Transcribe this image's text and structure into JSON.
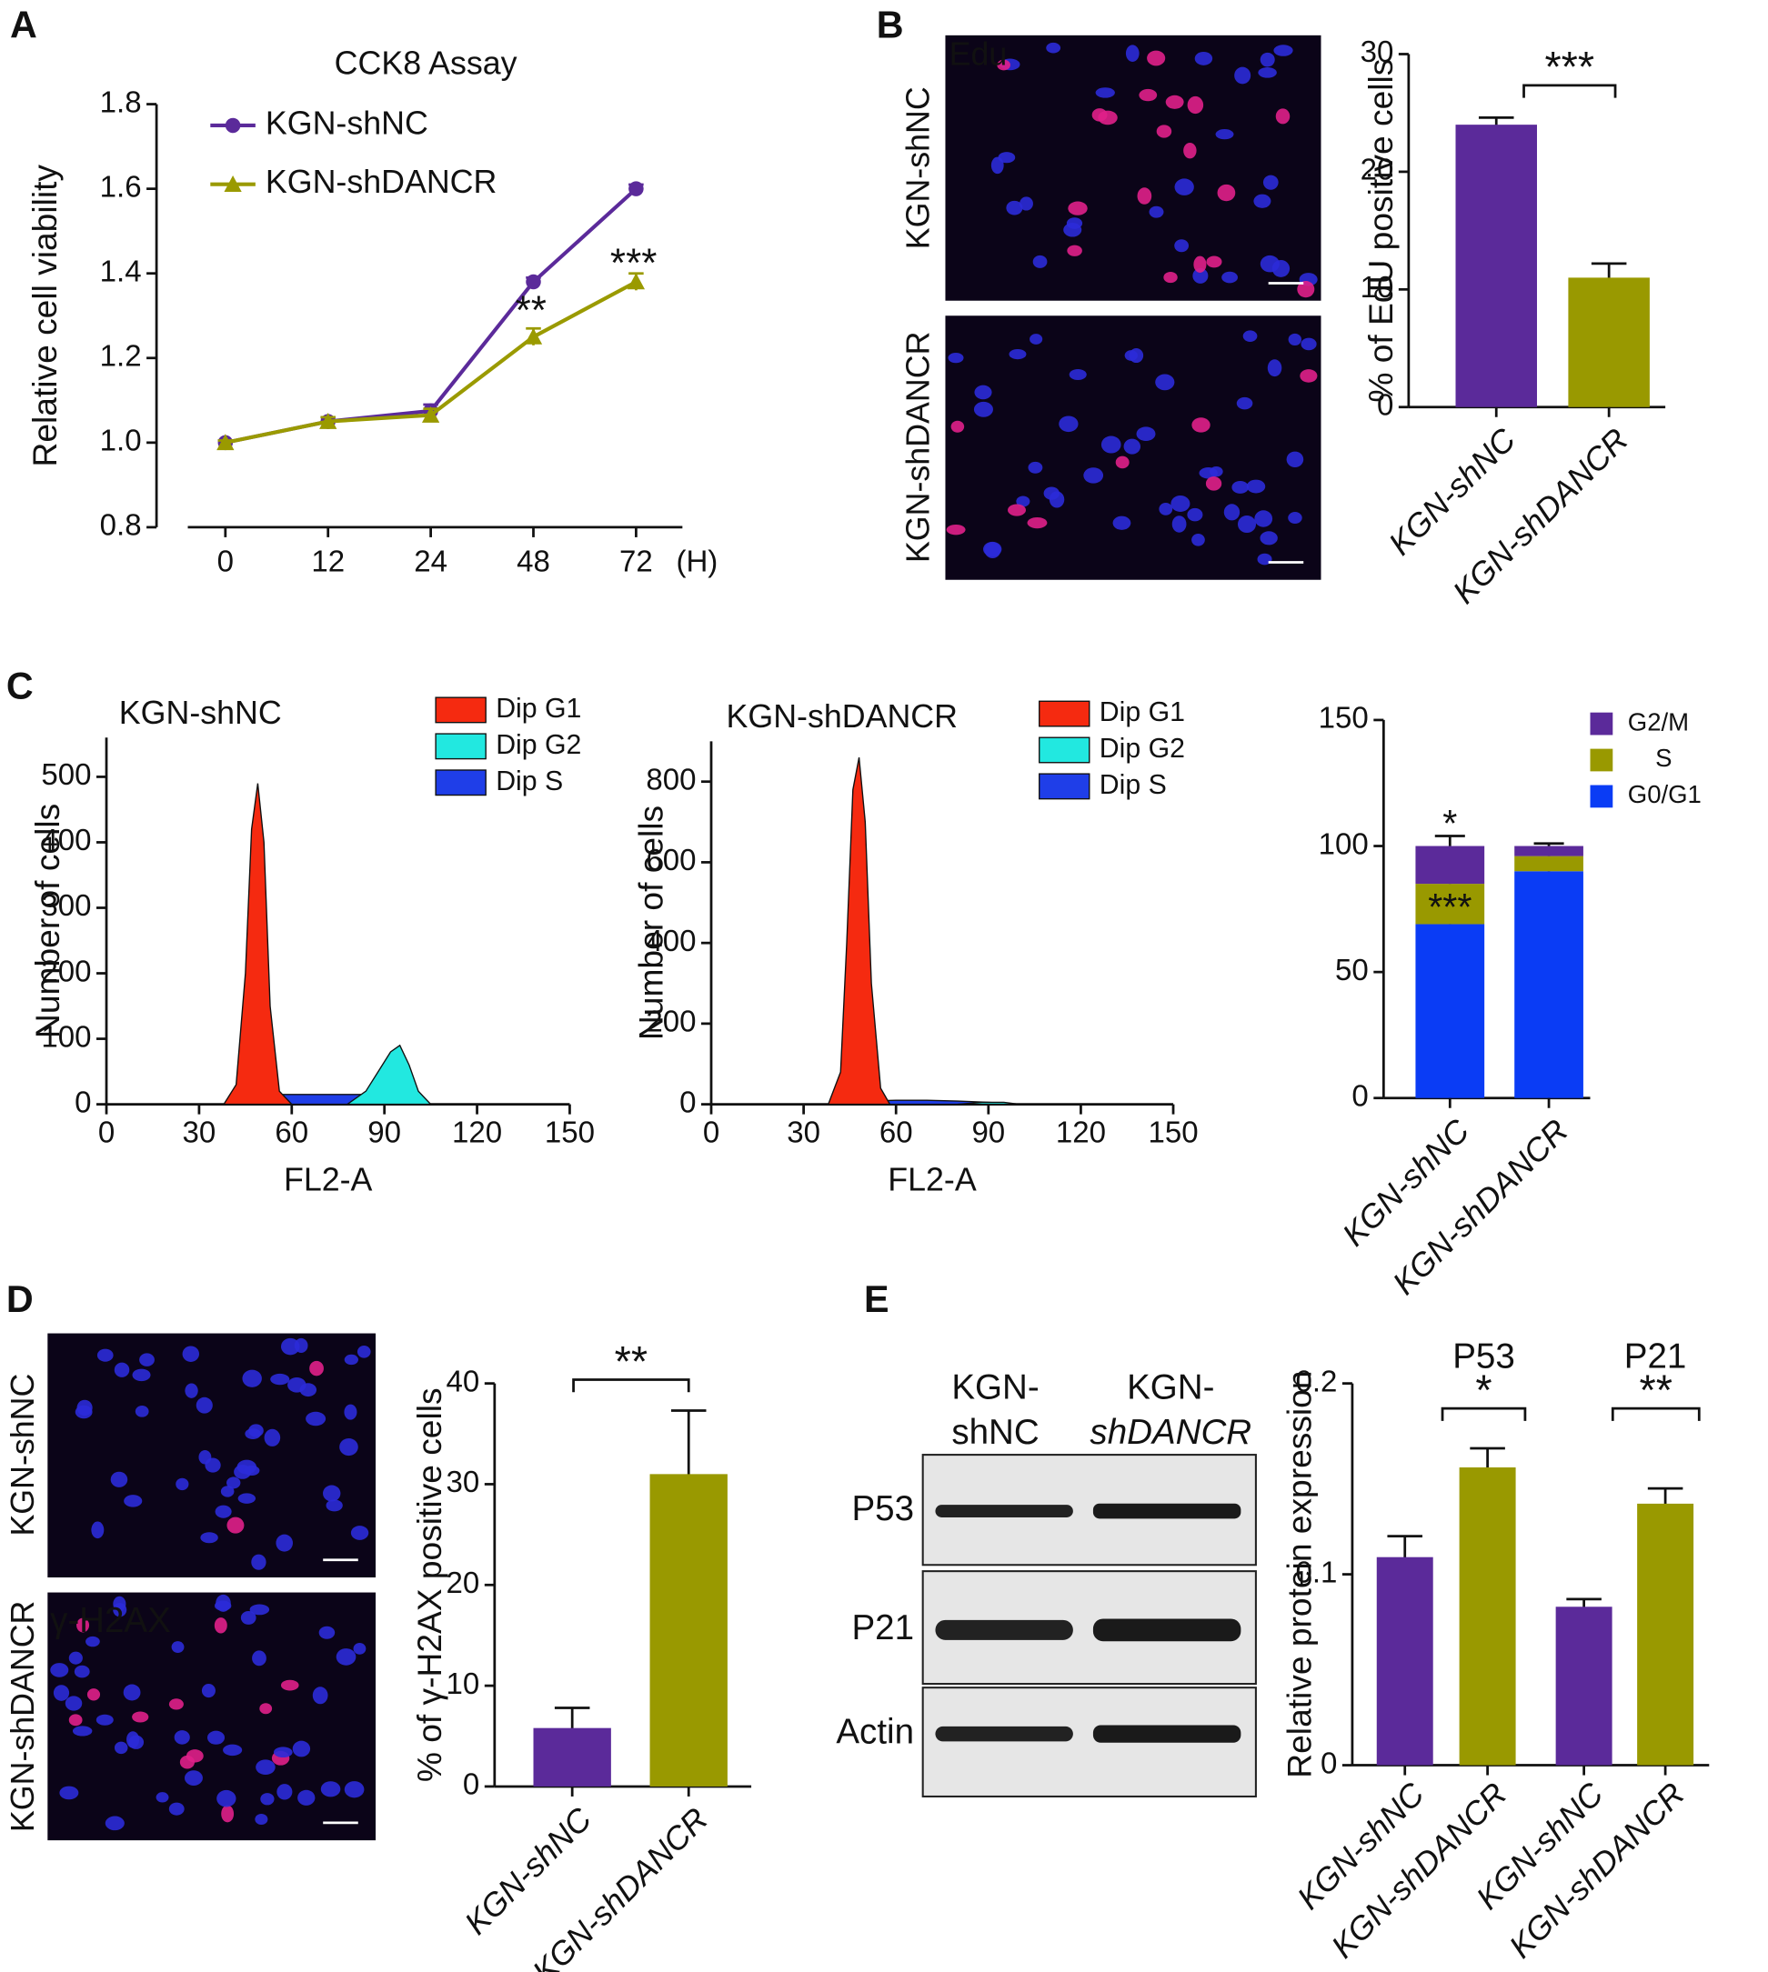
{
  "panel_labels": [
    "A",
    "B",
    "C",
    "D",
    "E"
  ],
  "edu_images": {
    "stain": "Edu",
    "rows": [
      "KGN-shNC",
      "KGN-shDANCR"
    ]
  },
  "h2ax_images": {
    "stain": "γ-H2AX",
    "rows": [
      "KGN-shNC",
      "KGN-shDANCR"
    ]
  },
  "blot": {
    "columns": [
      [
        "KGN-",
        "shNC"
      ],
      [
        "KGN-",
        "shDANCR"
      ]
    ],
    "rows": [
      "P53",
      "P21",
      "Actin"
    ]
  },
  "chart_data": [
    {
      "type": "line",
      "title": "CCK8 Assay",
      "y_label": "Relative cell viability",
      "x_unit": "(H)",
      "categories": [
        "0",
        "12",
        "24",
        "48",
        "72"
      ],
      "series": [
        {
          "name": "KGN-shNC",
          "color": "#5b2a9a",
          "marker": "circle",
          "values": [
            1.0,
            1.05,
            1.075,
            1.38,
            1.6
          ],
          "errors": [
            0.005,
            0.01,
            0.015,
            0.01,
            0.01
          ]
        },
        {
          "name": "KGN-shDANCR",
          "color": "#9a9a00",
          "marker": "triangle",
          "values": [
            1.0,
            1.05,
            1.065,
            1.25,
            1.38
          ],
          "errors": [
            0.005,
            0.01,
            0.015,
            0.02,
            0.02
          ]
        }
      ],
      "ylim": [
        0.8,
        1.8
      ],
      "yticks": [
        0.8,
        {
          "value": 1,
          "label": "1.0"
        },
        1.2,
        1.4,
        1.6,
        1.8
      ],
      "annotations": [
        "**",
        "***"
      ]
    },
    {
      "type": "bar",
      "y_label": "% of EdU positive cells",
      "categories": [
        "KGN-shNC",
        "KGN-shDANCR"
      ],
      "values": [
        24,
        11
      ],
      "errors": [
        0.6,
        1.2
      ],
      "colors": [
        "#5b2a9a",
        "#999900"
      ],
      "ylim": [
        0,
        30
      ],
      "yticks": [
        0,
        10,
        20,
        30
      ],
      "annotations": [
        "***"
      ]
    },
    {
      "type": "histogram",
      "title": "KGN-shNC",
      "x_label": "FL2-A",
      "y_label": "Number of cells",
      "xlim": [
        0,
        150
      ],
      "xticks": [
        0,
        30,
        60,
        90,
        120,
        150
      ],
      "ylim": [
        0,
        560
      ],
      "yticks": [
        0,
        100,
        200,
        300,
        400,
        500
      ],
      "series": [
        {
          "name": "Dip G1",
          "color": "#f52a10",
          "x": [
            38,
            42,
            45,
            47,
            49,
            51,
            53,
            56,
            60
          ],
          "values": [
            0,
            30,
            200,
            420,
            490,
            400,
            150,
            20,
            0
          ]
        },
        {
          "name": "Dip G2",
          "color": "#22e8e0",
          "x": [
            78,
            84,
            88,
            92,
            95,
            98,
            101,
            105
          ],
          "values": [
            0,
            20,
            50,
            80,
            90,
            60,
            20,
            0
          ]
        },
        {
          "name": "Dip S",
          "color": "#1f3ee8",
          "x": [
            45,
            55,
            65,
            75,
            85,
            95,
            105
          ],
          "values": [
            5,
            15,
            15,
            15,
            15,
            10,
            0
          ]
        }
      ]
    },
    {
      "type": "histogram",
      "title": "KGN-shDANCR",
      "x_label": "FL2-A",
      "y_label": "Number of cells",
      "xlim": [
        0,
        150
      ],
      "xticks": [
        0,
        30,
        60,
        90,
        120,
        150
      ],
      "ylim": [
        0,
        900
      ],
      "yticks": [
        0,
        200,
        400,
        600,
        800
      ],
      "series": [
        {
          "name": "Dip G1",
          "color": "#f52a10",
          "x": [
            38,
            42,
            44,
            46,
            48,
            50,
            52,
            55,
            58
          ],
          "values": [
            0,
            80,
            400,
            780,
            860,
            700,
            300,
            40,
            0
          ]
        },
        {
          "name": "Dip G2",
          "color": "#22e8e0",
          "x": [
            80,
            88,
            95,
            100
          ],
          "values": [
            0,
            5,
            5,
            0
          ]
        },
        {
          "name": "Dip S",
          "color": "#1f3ee8",
          "x": [
            50,
            60,
            70,
            80,
            90,
            100
          ],
          "values": [
            8,
            10,
            10,
            8,
            5,
            0
          ]
        }
      ]
    },
    {
      "type": "stacked_bar",
      "categories": [
        "KGN-shNC",
        "KGN-shDANCR"
      ],
      "series": [
        {
          "name": "G0/G1",
          "color": "#0a3cf5",
          "values": [
            69,
            90
          ],
          "errors": [
            2,
            1
          ]
        },
        {
          "name": "S",
          "color": "#999900",
          "values": [
            16,
            6
          ],
          "errors": [
            5,
            1
          ]
        },
        {
          "name": "G2/M",
          "color": "#5b2a9a",
          "values": [
            15,
            4
          ],
          "errors": [
            4,
            1
          ]
        }
      ],
      "ylim": [
        0,
        150
      ],
      "yticks": [
        0,
        50,
        100,
        150
      ],
      "annotations": [
        "*",
        "***"
      ]
    },
    {
      "type": "bar",
      "y_label": "% of γ-H2AX positive cells",
      "categories": [
        "KGN-shNC",
        "KGN-shDANCR"
      ],
      "values": [
        5.8,
        31
      ],
      "errors": [
        2,
        6.3
      ],
      "colors": [
        "#5b2a9a",
        "#999900"
      ],
      "ylim": [
        0,
        40
      ],
      "yticks": [
        0,
        10,
        20,
        30,
        40
      ],
      "annotations": [
        "**"
      ]
    },
    {
      "type": "bar",
      "y_label": "Relative protein expression",
      "categories": [
        "KGN-shNC",
        "KGN-shDANCR",
        "KGN-shNC",
        "KGN-shDANCR"
      ],
      "values": [
        0.109,
        0.156,
        0.083,
        0.137
      ],
      "errors": [
        0.011,
        0.01,
        0.004,
        0.008
      ],
      "colors": [
        "#5b2a9a",
        "#999900",
        "#5b2a9a",
        "#999900"
      ],
      "groups": [
        "P53",
        "P21"
      ],
      "ylim": [
        0,
        0.2
      ],
      "yticks": [
        0,
        0.1,
        0.2
      ],
      "annotations": [
        "*",
        "**"
      ]
    }
  ]
}
